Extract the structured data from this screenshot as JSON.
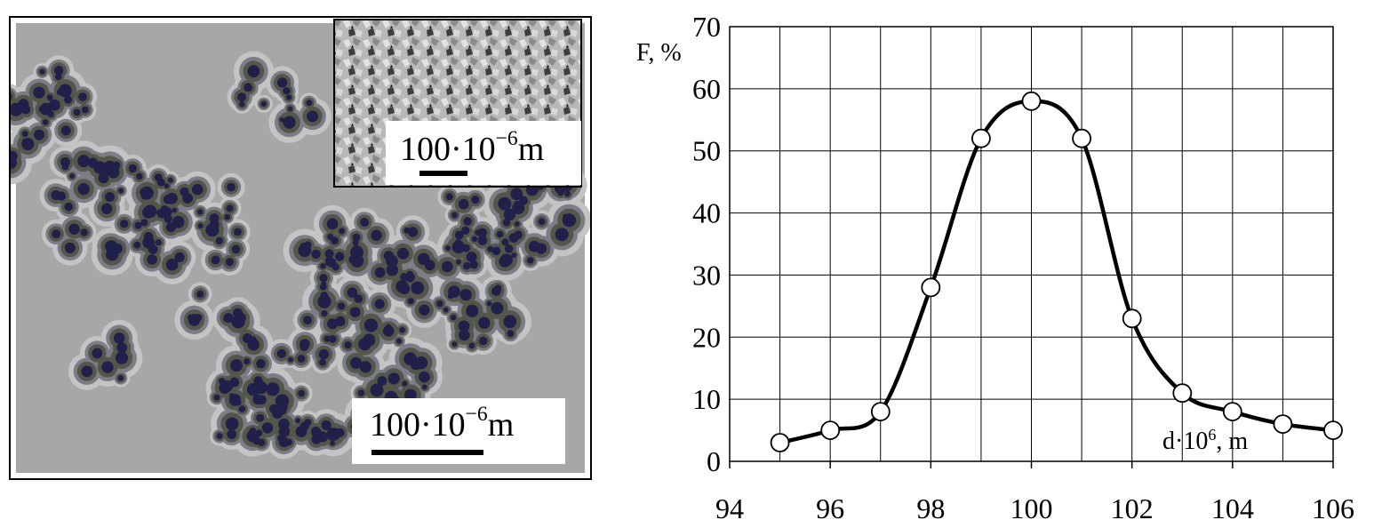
{
  "micrograph": {
    "main_scale": {
      "value": "100·10",
      "exp": "−6",
      "unit": "m"
    },
    "inset_scale": {
      "value": "100·10",
      "exp": "−6",
      "unit": "m"
    },
    "colors": {
      "background": "#a7a7a7",
      "halo": "#c4c4c4",
      "particle_outer": "#7c7d86",
      "particle_mid": "#55564a",
      "particle_core": "#20204a"
    }
  },
  "chart_data": {
    "type": "line",
    "x": [
      95,
      96,
      97,
      98,
      99,
      100,
      101,
      102,
      103,
      104,
      105,
      106
    ],
    "series": [
      {
        "values": [
          3,
          5,
          8,
          28,
          52,
          58,
          52,
          23,
          11,
          8,
          6,
          5
        ]
      }
    ],
    "xlim": [
      94,
      106
    ],
    "ylim": [
      0,
      70
    ],
    "x_ticks": [
      "94",
      "96",
      "98",
      "100",
      "102",
      "104",
      "106"
    ],
    "y_ticks": [
      "0",
      "10",
      "20",
      "30",
      "40",
      "50",
      "60",
      "70"
    ],
    "ylabel": "F, %",
    "xlabel": {
      "base": "d·10",
      "exp": "6",
      "unit": ", m"
    },
    "grid": true,
    "line_color": "#000000",
    "marker": "open-circle"
  }
}
